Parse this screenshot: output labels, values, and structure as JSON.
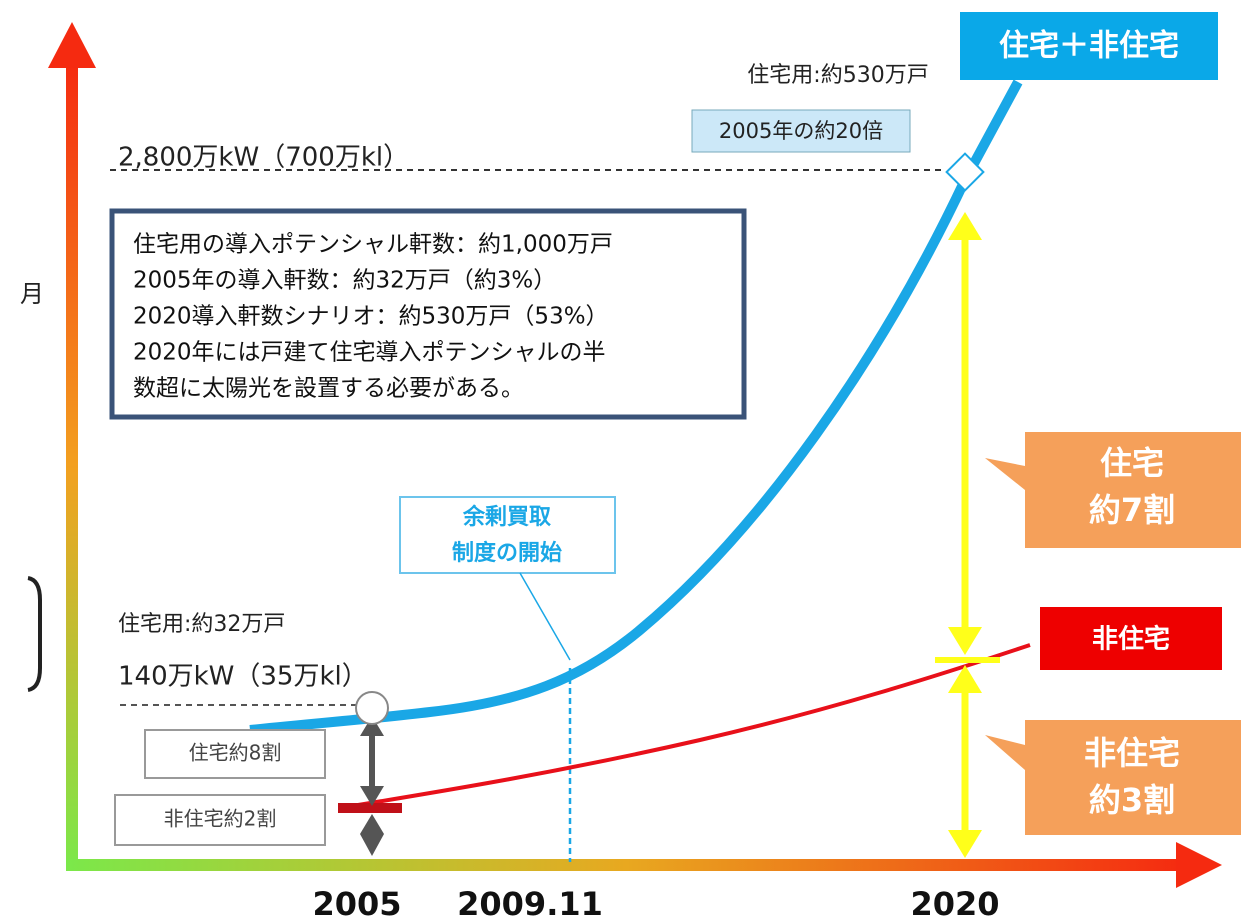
{
  "top_label": "住宅＋非住宅",
  "res_count_2020": "住宅用:約530万戸",
  "ratio_note": "2005年の約20倍",
  "level_2020": "2,800万kW（700万kl）",
  "info_box": [
    "住宅用の導入ポテンシャル軒数：約1,000万戸",
    "2005年の導入軒数：約32万戸（約3%）",
    "2020導入軒数シナリオ：約530万戸（53%）",
    "2020年には戸建て住宅導入ポテンシャルの半",
    "数超に太陽光を設置する必要がある。"
  ],
  "side_cut_label": "月",
  "policy_note": [
    "余剰買取",
    "制度の開始"
  ],
  "res_count_2005": "住宅用:約32万戸",
  "level_2005": "140万kW（35万kl）",
  "share_2005": [
    "住宅約8割",
    "非住宅約2割"
  ],
  "share_2020_res": [
    "住宅",
    "約7割"
  ],
  "nonres_label": "非住宅",
  "share_2020_nonres": [
    "非住宅",
    "約3割"
  ],
  "x_labels": [
    "2005",
    "2009.11",
    "2020"
  ]
}
